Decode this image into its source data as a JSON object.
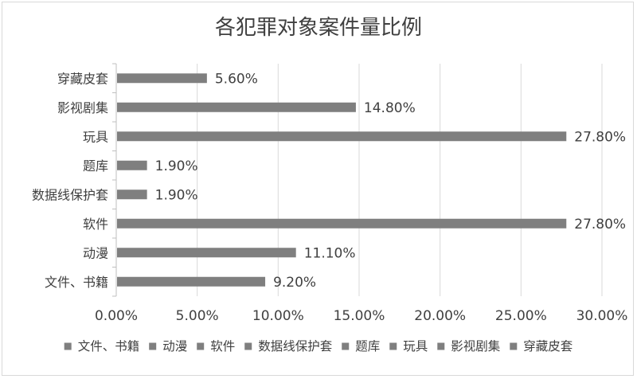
{
  "chart_data": {
    "type": "bar",
    "orientation": "horizontal",
    "title": "各犯罪对象案件量比例",
    "xlabel": "",
    "ylabel": "",
    "categories": [
      "穿藏皮套",
      "影视剧集",
      "玩具",
      "题库",
      "数据线保护套",
      "软件",
      "动漫",
      "文件、书籍"
    ],
    "values": [
      5.6,
      14.8,
      27.8,
      1.9,
      1.9,
      27.8,
      11.1,
      9.2
    ],
    "value_labels": [
      "5.60%",
      "14.80%",
      "27.80%",
      "1.90%",
      "1.90%",
      "27.80%",
      "11.10%",
      "9.20%"
    ],
    "xlim": [
      0,
      30
    ],
    "x_ticks": [
      0,
      5,
      10,
      15,
      20,
      25,
      30
    ],
    "x_tick_labels": [
      "0.00%",
      "5.00%",
      "10.00%",
      "15.00%",
      "20.00%",
      "25.00%",
      "30.00%"
    ],
    "grid": "vertical",
    "legend_position": "bottom",
    "legend_entries": [
      "文件、书籍",
      "动漫",
      "软件",
      "数据线保护套",
      "题库",
      "玩具",
      "影视剧集",
      "穿藏皮套"
    ],
    "bar_color": "#7f7f7f",
    "grid_color": "#d9d9d9",
    "text_color": "#404040"
  }
}
